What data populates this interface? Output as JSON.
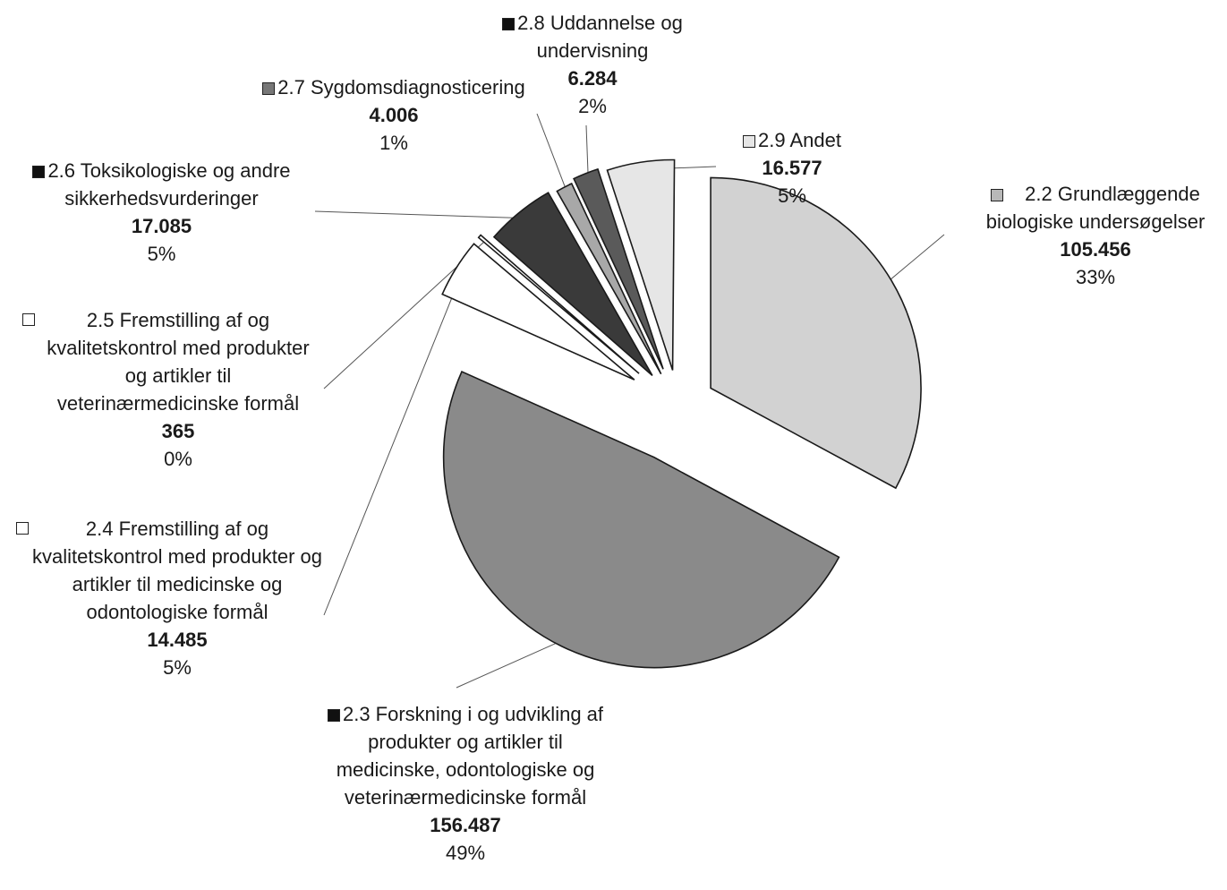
{
  "chart_data": {
    "type": "pie",
    "exploded": true,
    "title": "",
    "slices": [
      {
        "label": "2.2 Grundlæggende biologiske undersøgelser",
        "value": 105456,
        "value_label": "105.456",
        "percent_label": "33%",
        "color": "#d2d2d2"
      },
      {
        "label": "2.3 Forskning i og udvikling af produkter og artikler til medicinske, odontologiske og veterinærmedicinske formål",
        "value": 156487,
        "value_label": "156.487",
        "percent_label": "49%",
        "color": "#8a8a8a"
      },
      {
        "label": "2.4 Fremstilling af og kvalitetskontrol med produkter og artikler til medicinske og odontologiske formål",
        "value": 14485,
        "value_label": "14.485",
        "percent_label": "5%",
        "color": "#ffffff"
      },
      {
        "label": "2.5 Fremstilling af og kvalitetskontrol med produkter og artikler til veterinærmedicinske formål",
        "value": 365,
        "value_label": "365",
        "percent_label": "0%",
        "color": "#ffffff"
      },
      {
        "label": "2.6 Toksikologiske og andre sikkerhedsvurderinger",
        "value": 17085,
        "value_label": "17.085",
        "percent_label": "5%",
        "color": "#3a3a3a"
      },
      {
        "label": "2.7 Sygdomsdiagnosticering",
        "value": 4006,
        "value_label": "4.006",
        "percent_label": "1%",
        "color": "#a8a8a8"
      },
      {
        "label": "2.8 Uddannelse og undervisning",
        "value": 6284,
        "value_label": "6.284",
        "percent_label": "2%",
        "color": "#5a5a5a"
      },
      {
        "label": "2.9 Andet",
        "value": 16577,
        "value_label": "16.577",
        "percent_label": "5%",
        "color": "#e6e6e6"
      }
    ]
  }
}
